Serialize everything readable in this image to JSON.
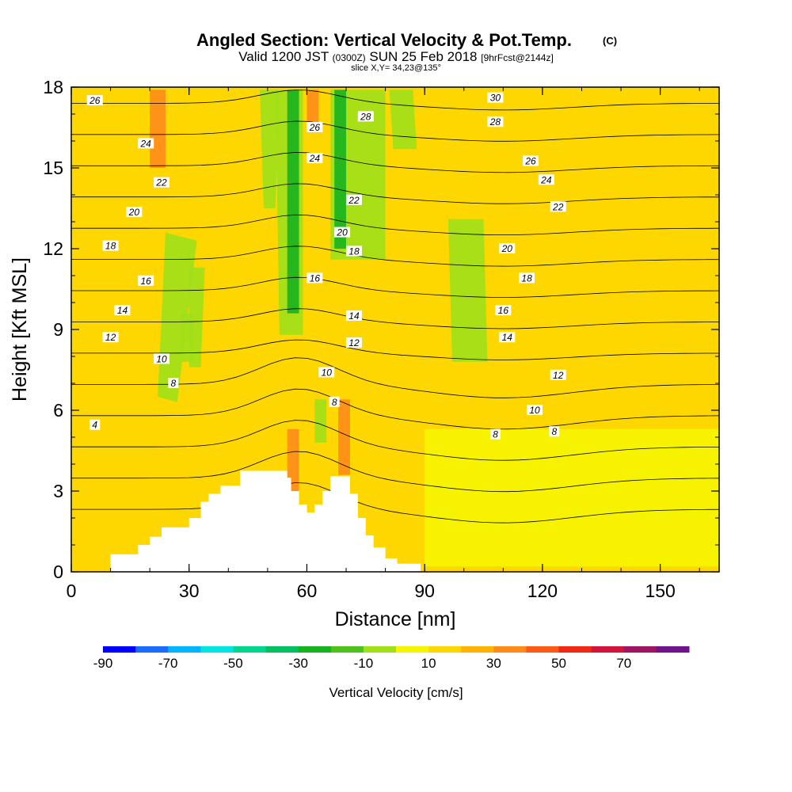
{
  "title": {
    "main": "Angled Section: Vertical Velocity & Pot.Temp.",
    "main_suffix": "(C)",
    "valid_prefix": "Valid 1200 JST",
    "valid_zulu": "(0300Z)",
    "valid_date": "SUN 25 Feb 2018",
    "valid_fcst": "[9hrFcst@2144z]",
    "slice": "slice X,Y= 34,23@135°"
  },
  "chart_data": {
    "type": "heatmap",
    "xlabel": "Distance [nm]",
    "ylabel": "Height [Kft MSL]",
    "xlim": [
      0,
      165
    ],
    "ylim": [
      0,
      18
    ],
    "x_ticks": [
      "0",
      "30",
      "60",
      "90",
      "120",
      "150"
    ],
    "y_ticks": [
      "0",
      "3",
      "6",
      "9",
      "12",
      "15",
      "18"
    ],
    "field": "Vertical Velocity",
    "colorbar": {
      "label": "Vertical Velocity [cm/s]",
      "tick_labels": [
        "-90",
        "-70",
        "-50",
        "-30",
        "-10",
        "10",
        "30",
        "50",
        "70"
      ],
      "levels": [
        -90,
        -80,
        -70,
        -60,
        -50,
        -40,
        -30,
        -20,
        -10,
        0,
        10,
        20,
        30,
        40,
        50,
        60,
        70,
        80
      ],
      "colors": [
        "#0000ff",
        "#1a6bff",
        "#00b4ff",
        "#00e5e0",
        "#00d68f",
        "#00c060",
        "#16b31e",
        "#4cc21a",
        "#a0e019",
        "#f5f500",
        "#ffd700",
        "#ffb200",
        "#ff8c1a",
        "#ff5a14",
        "#f02814",
        "#d2143c",
        "#a01464",
        "#6e148c"
      ]
    },
    "background_class": "10",
    "terrain": {
      "x": [
        0,
        10,
        10,
        17,
        17,
        20,
        20,
        23,
        23,
        30,
        30,
        33,
        33,
        35,
        35,
        38,
        38,
        43,
        43,
        55,
        55,
        56,
        56,
        58,
        58,
        60,
        60,
        62,
        62,
        64,
        64,
        66,
        66,
        71,
        71,
        73,
        73,
        75,
        75,
        77,
        77,
        80,
        80,
        83,
        83,
        89,
        89,
        165
      ],
      "y": [
        0,
        0,
        0.65,
        0.65,
        1.0,
        1.0,
        1.3,
        1.3,
        1.65,
        1.65,
        2.0,
        2.0,
        2.6,
        2.6,
        2.9,
        2.9,
        3.2,
        3.2,
        3.75,
        3.75,
        3.5,
        3.5,
        3.0,
        3.0,
        2.5,
        2.5,
        2.2,
        2.2,
        2.5,
        2.5,
        3.0,
        3.0,
        3.55,
        3.55,
        2.9,
        2.9,
        2.0,
        2.0,
        1.35,
        1.35,
        0.9,
        0.9,
        0.5,
        0.5,
        0.3,
        0.3,
        0,
        0
      ]
    },
    "velocity_regions": [
      {
        "class": "-10",
        "x": [
          27,
          32,
          24,
          22
        ],
        "y": [
          6.3,
          12.3,
          12.6,
          6.5
        ]
      },
      {
        "class": "-10",
        "x": [
          48,
          53,
          52,
          49
        ],
        "y": [
          17.9,
          17.9,
          13.5,
          13.5
        ]
      },
      {
        "class": "-10",
        "x": [
          28,
          31,
          31,
          28
        ],
        "y": [
          9.6,
          9.6,
          7.8,
          7.8
        ]
      },
      {
        "class": "-10",
        "x": [
          30,
          34,
          33,
          30
        ],
        "y": [
          11.3,
          11.3,
          7.6,
          7.6
        ]
      },
      {
        "class": "-10",
        "x": [
          52,
          59,
          59,
          53
        ],
        "y": [
          17.9,
          17.9,
          8.8,
          8.8
        ]
      },
      {
        "class": "-10",
        "x": [
          62,
          65,
          65,
          62
        ],
        "y": [
          6.4,
          6.4,
          4.8,
          4.8
        ]
      },
      {
        "class": "-10",
        "x": [
          66,
          80,
          80,
          66
        ],
        "y": [
          17.9,
          17.9,
          11.6,
          11.6
        ]
      },
      {
        "class": "-10",
        "x": [
          81,
          87,
          88,
          82
        ],
        "y": [
          17.9,
          17.9,
          15.7,
          15.7
        ]
      },
      {
        "class": "-10",
        "x": [
          96,
          105,
          106,
          97
        ],
        "y": [
          13.1,
          13.1,
          7.8,
          7.8
        ]
      },
      {
        "class": "-30",
        "x": [
          55,
          58,
          58,
          55
        ],
        "y": [
          17.9,
          17.9,
          9.6,
          9.6
        ]
      },
      {
        "class": "-30",
        "x": [
          67,
          70,
          70,
          67
        ],
        "y": [
          17.9,
          17.9,
          12.0,
          12.0
        ]
      },
      {
        "class": "30",
        "x": [
          20,
          24,
          24,
          20
        ],
        "y": [
          17.9,
          17.9,
          15.0,
          15.0
        ]
      },
      {
        "class": "30",
        "x": [
          60,
          63,
          63,
          60
        ],
        "y": [
          17.9,
          17.9,
          16.6,
          16.6
        ]
      },
      {
        "class": "30",
        "x": [
          55,
          58,
          58,
          55
        ],
        "y": [
          5.3,
          5.3,
          2.5,
          2.5
        ]
      },
      {
        "class": "30",
        "x": [
          68,
          71,
          71,
          68
        ],
        "y": [
          6.4,
          6.4,
          3.6,
          3.6
        ]
      },
      {
        "class": "10",
        "x": [
          90,
          165,
          165,
          90
        ],
        "y": [
          5.3,
          5.3,
          0.2,
          0.2
        ]
      }
    ],
    "isentropes": {
      "levels": [
        4,
        6,
        8,
        10,
        12,
        14,
        16,
        18,
        20,
        22,
        24,
        26,
        28,
        30
      ],
      "labeled": [
        {
          "label": "4",
          "x": 6,
          "y": 5.45
        },
        {
          "label": "8",
          "x": 26,
          "y": 7.0
        },
        {
          "label": "10",
          "x": 23,
          "y": 7.9
        },
        {
          "label": "12",
          "x": 10,
          "y": 8.7
        },
        {
          "label": "14",
          "x": 13,
          "y": 9.7
        },
        {
          "label": "16",
          "x": 19,
          "y": 10.8
        },
        {
          "label": "18",
          "x": 10,
          "y": 12.1
        },
        {
          "label": "20",
          "x": 16,
          "y": 13.35
        },
        {
          "label": "22",
          "x": 23,
          "y": 14.45
        },
        {
          "label": "24",
          "x": 19,
          "y": 15.9
        },
        {
          "label": "26",
          "x": 6,
          "y": 17.5
        },
        {
          "label": "26",
          "x": 62,
          "y": 16.5
        },
        {
          "label": "24",
          "x": 62,
          "y": 15.35
        },
        {
          "label": "28",
          "x": 75,
          "y": 16.9
        },
        {
          "label": "22",
          "x": 72,
          "y": 13.8
        },
        {
          "label": "20",
          "x": 69,
          "y": 12.6
        },
        {
          "label": "18",
          "x": 72,
          "y": 11.9
        },
        {
          "label": "16",
          "x": 62,
          "y": 10.9
        },
        {
          "label": "14",
          "x": 72,
          "y": 9.5
        },
        {
          "label": "12",
          "x": 72,
          "y": 8.5
        },
        {
          "label": "10",
          "x": 65,
          "y": 7.4
        },
        {
          "label": "8",
          "x": 67,
          "y": 6.3
        },
        {
          "label": "8",
          "x": 108,
          "y": 5.1
        },
        {
          "label": "8",
          "x": 123,
          "y": 5.2
        },
        {
          "label": "10",
          "x": 118,
          "y": 6.0
        },
        {
          "label": "12",
          "x": 124,
          "y": 7.3
        },
        {
          "label": "14",
          "x": 111,
          "y": 8.7
        },
        {
          "label": "16",
          "x": 110,
          "y": 9.7
        },
        {
          "label": "18",
          "x": 116,
          "y": 10.9
        },
        {
          "label": "20",
          "x": 111,
          "y": 12.0
        },
        {
          "label": "22",
          "x": 124,
          "y": 13.55
        },
        {
          "label": "24",
          "x": 121,
          "y": 14.55
        },
        {
          "label": "26",
          "x": 117,
          "y": 15.25
        },
        {
          "label": "28",
          "x": 108,
          "y": 16.7
        },
        {
          "label": "30",
          "x": 108,
          "y": 17.6
        }
      ]
    }
  }
}
